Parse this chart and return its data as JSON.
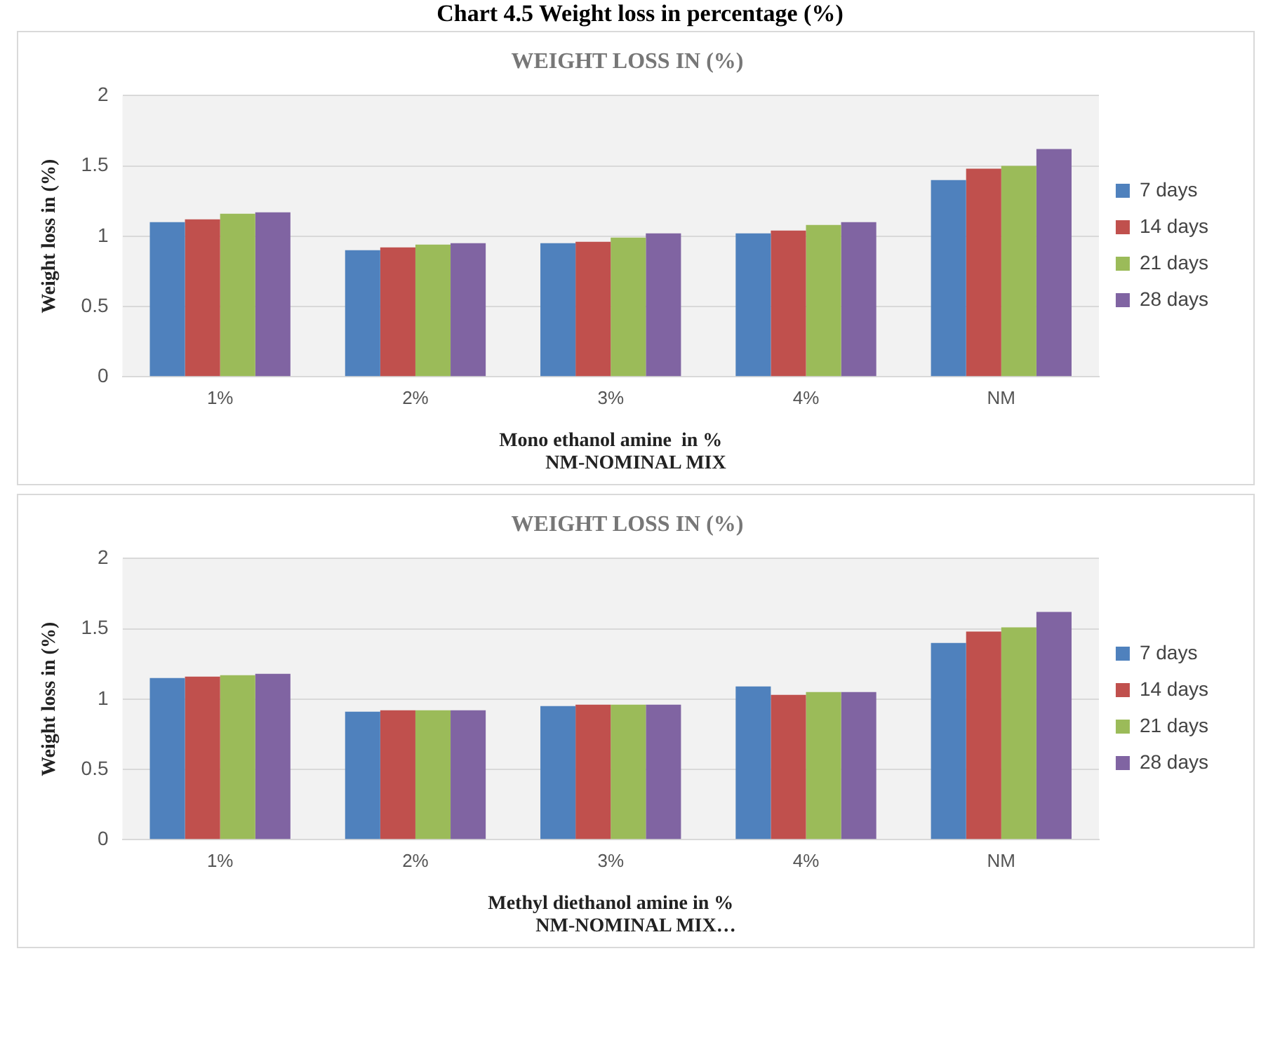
{
  "chart_data": [
    {
      "type": "bar",
      "title": "WEIGHT LOSS IN (%)",
      "xlabel": "Mono ethanol amine  in %",
      "ylabel": "Weight loss in (%)",
      "annotations": [
        "Chart 4.5 Weight loss in percentage (%)",
        "NM-NOMINAL MIX"
      ],
      "categories": [
        "1%",
        "2%",
        "3%",
        "4%",
        "NM"
      ],
      "series": [
        {
          "name": "7 days",
          "color": "#4f81bd",
          "values": [
            1.1,
            0.9,
            0.95,
            1.02,
            1.4
          ]
        },
        {
          "name": "14 days",
          "color": "#c0504d",
          "values": [
            1.12,
            0.92,
            0.96,
            1.04,
            1.48
          ]
        },
        {
          "name": "21 days",
          "color": "#9bbb59",
          "values": [
            1.16,
            0.94,
            0.99,
            1.08,
            1.5
          ]
        },
        {
          "name": "28 days",
          "color": "#8064a2",
          "values": [
            1.17,
            0.95,
            1.02,
            1.1,
            1.62
          ]
        }
      ],
      "ylim": [
        0,
        2
      ],
      "yticks": [
        0,
        0.5,
        1,
        1.5,
        2
      ],
      "grid": "y",
      "legend": "right"
    },
    {
      "type": "bar",
      "title": "WEIGHT LOSS IN (%)",
      "xlabel": "Methyl diethanol amine in %",
      "ylabel": "Weight loss in (%)",
      "annotations": [
        "NM-NOMINAL MIX…"
      ],
      "categories": [
        "1%",
        "2%",
        "3%",
        "4%",
        "NM"
      ],
      "series": [
        {
          "name": "7 days",
          "color": "#4f81bd",
          "values": [
            1.15,
            0.91,
            0.95,
            1.09,
            1.4
          ]
        },
        {
          "name": "14 days",
          "color": "#c0504d",
          "values": [
            1.16,
            0.92,
            0.96,
            1.03,
            1.48
          ]
        },
        {
          "name": "21 days",
          "color": "#9bbb59",
          "values": [
            1.17,
            0.92,
            0.96,
            1.05,
            1.51
          ]
        },
        {
          "name": "28 days",
          "color": "#8064a2",
          "values": [
            1.18,
            0.92,
            0.96,
            1.05,
            1.62
          ]
        }
      ],
      "ylim": [
        0,
        2
      ],
      "yticks": [
        0,
        0.5,
        1,
        1.5,
        2
      ],
      "grid": "y",
      "legend": "right"
    }
  ]
}
